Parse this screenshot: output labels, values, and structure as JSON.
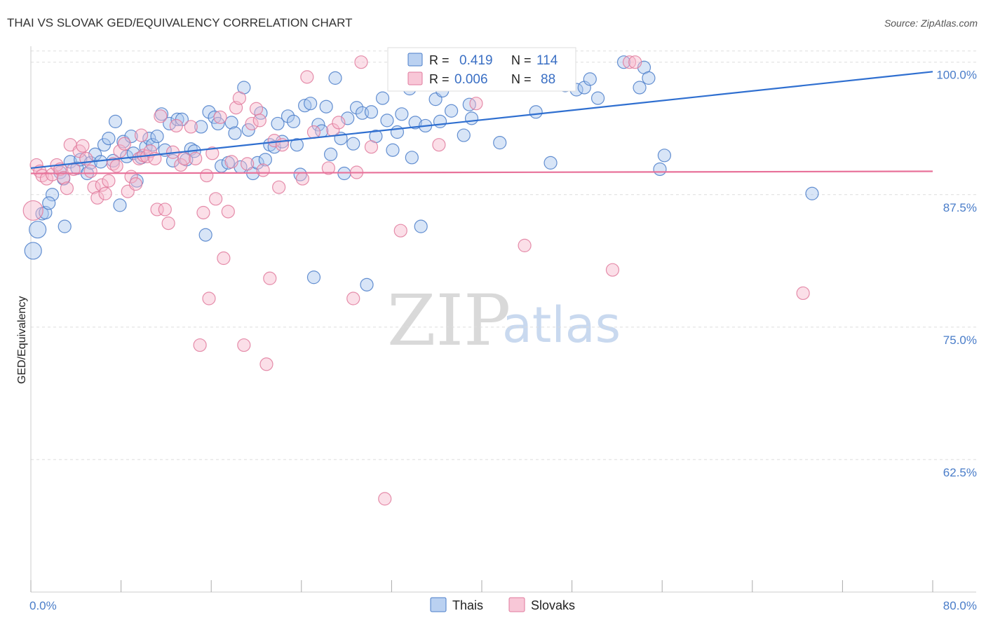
{
  "header": {
    "title": "THAI VS SLOVAK GED/EQUIVALENCY CORRELATION CHART",
    "source": "Source: ZipAtlas.com"
  },
  "watermark": {
    "zip": "ZIP",
    "atlas": "atlas"
  },
  "stats_legend": {
    "rows": [
      {
        "r_label": "R =",
        "r_value": "0.419",
        "n_label": "N =",
        "n_value": "114"
      },
      {
        "r_label": "R =",
        "r_value": "0.006",
        "n_label": "N =",
        "n_value": "88"
      }
    ]
  },
  "colors": {
    "thais_fill": "#a9c6ee",
    "thais_stroke": "#4a7dc9",
    "thais_line": "#2f6fd0",
    "slovaks_fill": "#f6b9cd",
    "slovaks_stroke": "#e07a9c",
    "slovaks_line": "#e8729a",
    "grid": "#dddddd",
    "tick_label": "#4a7dc9"
  },
  "chart_data": {
    "type": "scatter",
    "title": "THAI VS SLOVAK GED/EQUIVALENCY CORRELATION CHART",
    "xlabel": "",
    "ylabel": "GED/Equivalency",
    "xlim": [
      0,
      80
    ],
    "ylim": [
      50,
      101.5
    ],
    "x_tick_labels": [
      "0.0%",
      "80.0%"
    ],
    "y_ticks": [
      62.5,
      75.0,
      87.5,
      100.0
    ],
    "y_tick_labels": [
      "62.5%",
      "75.0%",
      "87.5%",
      "100.0%"
    ],
    "grid": true,
    "legend_position": "bottom-center",
    "series": [
      {
        "name": "Thais",
        "R": 0.419,
        "N": 114,
        "trend": {
          "x": [
            0,
            80
          ],
          "y": [
            90.0,
            99.1
          ]
        },
        "points": [
          {
            "x": 0.2,
            "y": 82.2
          },
          {
            "x": 0.6,
            "y": 84.2
          },
          {
            "x": 1.0,
            "y": 85.7
          },
          {
            "x": 1.3,
            "y": 85.8
          },
          {
            "x": 1.9,
            "y": 87.5
          },
          {
            "x": 1.6,
            "y": 86.7
          },
          {
            "x": 3.0,
            "y": 84.5
          },
          {
            "x": 2.6,
            "y": 89.6
          },
          {
            "x": 2.9,
            "y": 89.0
          },
          {
            "x": 3.5,
            "y": 90.6
          },
          {
            "x": 4.1,
            "y": 90.0
          },
          {
            "x": 4.4,
            "y": 90.8
          },
          {
            "x": 5.0,
            "y": 89.5
          },
          {
            "x": 5.3,
            "y": 90.5
          },
          {
            "x": 5.7,
            "y": 91.3
          },
          {
            "x": 6.2,
            "y": 90.6
          },
          {
            "x": 6.5,
            "y": 92.2
          },
          {
            "x": 6.9,
            "y": 92.8
          },
          {
            "x": 7.3,
            "y": 90.7
          },
          {
            "x": 7.5,
            "y": 94.4
          },
          {
            "x": 7.9,
            "y": 86.5
          },
          {
            "x": 8.2,
            "y": 92.5
          },
          {
            "x": 8.5,
            "y": 91.1
          },
          {
            "x": 8.9,
            "y": 93.0
          },
          {
            "x": 9.1,
            "y": 91.4
          },
          {
            "x": 9.4,
            "y": 88.8
          },
          {
            "x": 9.8,
            "y": 91.0
          },
          {
            "x": 10.2,
            "y": 92.0
          },
          {
            "x": 10.5,
            "y": 92.8
          },
          {
            "x": 10.8,
            "y": 92.2
          },
          {
            "x": 11.2,
            "y": 93.0
          },
          {
            "x": 11.6,
            "y": 95.1
          },
          {
            "x": 11.9,
            "y": 91.7
          },
          {
            "x": 12.3,
            "y": 94.2
          },
          {
            "x": 12.6,
            "y": 90.7
          },
          {
            "x": 13.0,
            "y": 94.6
          },
          {
            "x": 13.4,
            "y": 94.6
          },
          {
            "x": 13.8,
            "y": 90.8
          },
          {
            "x": 14.2,
            "y": 91.8
          },
          {
            "x": 14.5,
            "y": 91.6
          },
          {
            "x": 15.1,
            "y": 93.9
          },
          {
            "x": 15.5,
            "y": 83.7
          },
          {
            "x": 15.8,
            "y": 95.3
          },
          {
            "x": 16.3,
            "y": 94.8
          },
          {
            "x": 16.6,
            "y": 94.2
          },
          {
            "x": 16.9,
            "y": 90.2
          },
          {
            "x": 17.5,
            "y": 90.5
          },
          {
            "x": 17.8,
            "y": 94.3
          },
          {
            "x": 18.1,
            "y": 93.3
          },
          {
            "x": 18.6,
            "y": 90.1
          },
          {
            "x": 18.9,
            "y": 97.6
          },
          {
            "x": 19.3,
            "y": 93.6
          },
          {
            "x": 19.7,
            "y": 89.5
          },
          {
            "x": 20.1,
            "y": 90.5
          },
          {
            "x": 20.4,
            "y": 95.2
          },
          {
            "x": 20.8,
            "y": 90.8
          },
          {
            "x": 21.2,
            "y": 92.2
          },
          {
            "x": 21.6,
            "y": 92.0
          },
          {
            "x": 21.9,
            "y": 94.2
          },
          {
            "x": 22.3,
            "y": 92.5
          },
          {
            "x": 22.8,
            "y": 94.9
          },
          {
            "x": 23.3,
            "y": 94.4
          },
          {
            "x": 23.6,
            "y": 92.2
          },
          {
            "x": 23.9,
            "y": 89.4
          },
          {
            "x": 24.3,
            "y": 95.9
          },
          {
            "x": 24.8,
            "y": 96.1
          },
          {
            "x": 25.1,
            "y": 79.7
          },
          {
            "x": 25.5,
            "y": 94.1
          },
          {
            "x": 25.8,
            "y": 93.5
          },
          {
            "x": 26.2,
            "y": 95.8
          },
          {
            "x": 26.6,
            "y": 91.3
          },
          {
            "x": 27.0,
            "y": 98.5
          },
          {
            "x": 27.5,
            "y": 92.8
          },
          {
            "x": 27.8,
            "y": 89.5
          },
          {
            "x": 28.1,
            "y": 94.7
          },
          {
            "x": 28.6,
            "y": 92.3
          },
          {
            "x": 28.9,
            "y": 95.7
          },
          {
            "x": 29.4,
            "y": 95.2
          },
          {
            "x": 29.8,
            "y": 79.0
          },
          {
            "x": 30.2,
            "y": 95.3
          },
          {
            "x": 30.6,
            "y": 93.0
          },
          {
            "x": 31.2,
            "y": 96.6
          },
          {
            "x": 31.6,
            "y": 94.5
          },
          {
            "x": 32.1,
            "y": 91.7
          },
          {
            "x": 32.5,
            "y": 93.4
          },
          {
            "x": 32.9,
            "y": 95.1
          },
          {
            "x": 33.6,
            "y": 97.5
          },
          {
            "x": 33.8,
            "y": 91.0
          },
          {
            "x": 34.1,
            "y": 94.3
          },
          {
            "x": 34.6,
            "y": 84.5
          },
          {
            "x": 35.0,
            "y": 94.0
          },
          {
            "x": 35.9,
            "y": 96.5
          },
          {
            "x": 36.3,
            "y": 94.4
          },
          {
            "x": 37.3,
            "y": 95.4
          },
          {
            "x": 38.4,
            "y": 93.1
          },
          {
            "x": 38.9,
            "y": 96.0
          },
          {
            "x": 39.1,
            "y": 94.7
          },
          {
            "x": 40.3,
            "y": 98.2
          },
          {
            "x": 41.6,
            "y": 92.4
          },
          {
            "x": 44.8,
            "y": 95.3
          },
          {
            "x": 46.1,
            "y": 90.5
          },
          {
            "x": 48.4,
            "y": 97.4
          },
          {
            "x": 47.4,
            "y": 97.8
          },
          {
            "x": 49.1,
            "y": 97.6
          },
          {
            "x": 49.6,
            "y": 98.4
          },
          {
            "x": 50.3,
            "y": 96.6
          },
          {
            "x": 52.6,
            "y": 100.0
          },
          {
            "x": 54.0,
            "y": 97.6
          },
          {
            "x": 54.4,
            "y": 99.5
          },
          {
            "x": 54.8,
            "y": 98.5
          },
          {
            "x": 56.2,
            "y": 91.2
          },
          {
            "x": 55.8,
            "y": 89.9
          },
          {
            "x": 69.3,
            "y": 87.6
          },
          {
            "x": 36.5,
            "y": 97.3
          }
        ]
      },
      {
        "name": "Slovaks",
        "R": 0.006,
        "N": 88,
        "trend": {
          "x": [
            0,
            80
          ],
          "y": [
            89.5,
            89.7
          ]
        },
        "points": [
          {
            "x": 0.2,
            "y": 86.0
          },
          {
            "x": 0.5,
            "y": 90.3
          },
          {
            "x": 0.8,
            "y": 89.7
          },
          {
            "x": 1.0,
            "y": 89.3
          },
          {
            "x": 1.4,
            "y": 89.0
          },
          {
            "x": 1.9,
            "y": 89.4
          },
          {
            "x": 2.3,
            "y": 90.3
          },
          {
            "x": 2.6,
            "y": 89.9
          },
          {
            "x": 2.9,
            "y": 89.1
          },
          {
            "x": 3.2,
            "y": 88.1
          },
          {
            "x": 3.5,
            "y": 92.2
          },
          {
            "x": 3.8,
            "y": 89.9
          },
          {
            "x": 4.3,
            "y": 91.6
          },
          {
            "x": 4.6,
            "y": 92.1
          },
          {
            "x": 4.9,
            "y": 90.9
          },
          {
            "x": 5.3,
            "y": 89.7
          },
          {
            "x": 5.6,
            "y": 88.2
          },
          {
            "x": 5.9,
            "y": 87.2
          },
          {
            "x": 6.3,
            "y": 88.4
          },
          {
            "x": 6.6,
            "y": 87.6
          },
          {
            "x": 6.9,
            "y": 88.8
          },
          {
            "x": 7.3,
            "y": 90.4
          },
          {
            "x": 7.6,
            "y": 90.2
          },
          {
            "x": 7.9,
            "y": 91.6
          },
          {
            "x": 8.3,
            "y": 92.3
          },
          {
            "x": 8.6,
            "y": 87.8
          },
          {
            "x": 8.9,
            "y": 89.2
          },
          {
            "x": 9.3,
            "y": 88.5
          },
          {
            "x": 9.6,
            "y": 90.9
          },
          {
            "x": 9.8,
            "y": 93.1
          },
          {
            "x": 10.0,
            "y": 91.2
          },
          {
            "x": 10.3,
            "y": 91.1
          },
          {
            "x": 10.6,
            "y": 91.6
          },
          {
            "x": 11.0,
            "y": 90.9
          },
          {
            "x": 11.2,
            "y": 86.1
          },
          {
            "x": 11.5,
            "y": 94.9
          },
          {
            "x": 11.9,
            "y": 86.1
          },
          {
            "x": 12.2,
            "y": 84.8
          },
          {
            "x": 12.6,
            "y": 91.5
          },
          {
            "x": 12.9,
            "y": 94.0
          },
          {
            "x": 13.3,
            "y": 90.3
          },
          {
            "x": 13.6,
            "y": 90.9
          },
          {
            "x": 14.2,
            "y": 93.9
          },
          {
            "x": 14.6,
            "y": 90.9
          },
          {
            "x": 15.0,
            "y": 73.3
          },
          {
            "x": 15.3,
            "y": 85.8
          },
          {
            "x": 15.6,
            "y": 89.3
          },
          {
            "x": 15.8,
            "y": 77.7
          },
          {
            "x": 16.1,
            "y": 91.4
          },
          {
            "x": 16.4,
            "y": 87.1
          },
          {
            "x": 16.8,
            "y": 94.8
          },
          {
            "x": 17.1,
            "y": 81.5
          },
          {
            "x": 17.5,
            "y": 85.9
          },
          {
            "x": 17.8,
            "y": 90.6
          },
          {
            "x": 18.2,
            "y": 95.7
          },
          {
            "x": 18.5,
            "y": 96.6
          },
          {
            "x": 18.9,
            "y": 73.3
          },
          {
            "x": 19.2,
            "y": 90.4
          },
          {
            "x": 19.6,
            "y": 94.2
          },
          {
            "x": 20.0,
            "y": 95.6
          },
          {
            "x": 20.3,
            "y": 94.5
          },
          {
            "x": 20.6,
            "y": 89.8
          },
          {
            "x": 20.9,
            "y": 71.5
          },
          {
            "x": 21.2,
            "y": 79.6
          },
          {
            "x": 21.6,
            "y": 92.6
          },
          {
            "x": 22.0,
            "y": 88.2
          },
          {
            "x": 22.3,
            "y": 92.2
          },
          {
            "x": 24.1,
            "y": 89.0
          },
          {
            "x": 24.5,
            "y": 98.6
          },
          {
            "x": 25.1,
            "y": 93.4
          },
          {
            "x": 26.4,
            "y": 90.0
          },
          {
            "x": 26.8,
            "y": 93.6
          },
          {
            "x": 27.3,
            "y": 94.3
          },
          {
            "x": 28.6,
            "y": 77.7
          },
          {
            "x": 28.9,
            "y": 89.6
          },
          {
            "x": 29.3,
            "y": 100.0
          },
          {
            "x": 30.2,
            "y": 92.0
          },
          {
            "x": 31.4,
            "y": 58.8
          },
          {
            "x": 32.8,
            "y": 84.1
          },
          {
            "x": 36.2,
            "y": 92.2
          },
          {
            "x": 38.7,
            "y": 100.0
          },
          {
            "x": 39.5,
            "y": 96.1
          },
          {
            "x": 42.3,
            "y": 100.0
          },
          {
            "x": 43.8,
            "y": 82.7
          },
          {
            "x": 51.6,
            "y": 80.4
          },
          {
            "x": 53.1,
            "y": 100.0
          },
          {
            "x": 53.6,
            "y": 100.0
          },
          {
            "x": 68.5,
            "y": 78.2
          }
        ]
      }
    ]
  },
  "bottom_legend": {
    "items": [
      {
        "label": "Thais"
      },
      {
        "label": "Slovaks"
      }
    ]
  }
}
